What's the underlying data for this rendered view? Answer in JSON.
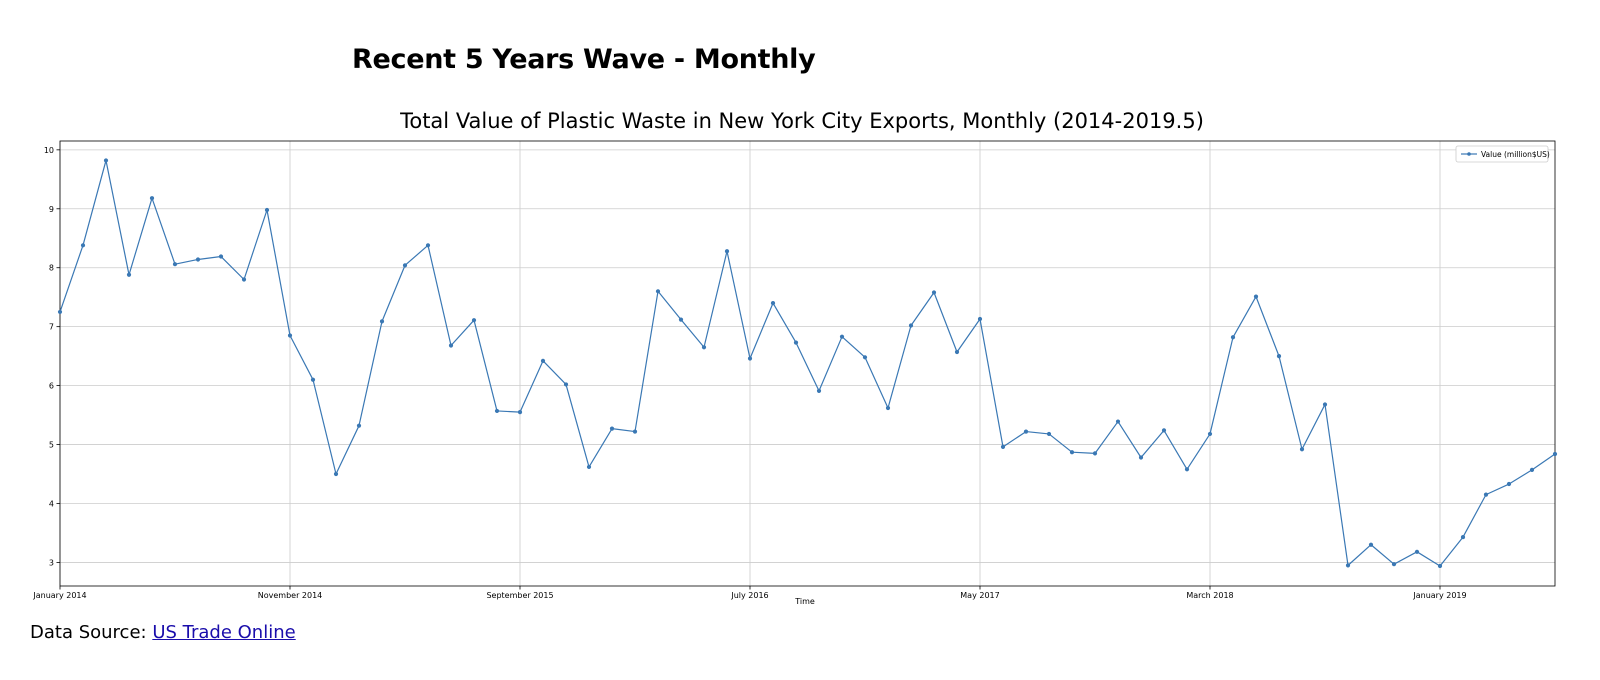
{
  "page": {
    "heading": "Recent 5 Years Wave - Monthly",
    "source_prefix": "Data Source: ",
    "source_link_text": "US Trade Online"
  },
  "colors": {
    "series": "#3a78b4",
    "grid": "#cccccc",
    "link": "#1a0dab"
  },
  "chart_data": {
    "type": "line",
    "title": "Total Value of Plastic Waste in New York City Exports, Monthly (2014-2019.5)",
    "xlabel": "Time",
    "ylabel": "",
    "grid": true,
    "legend_position": "top-right",
    "ylim": [
      2.6,
      10.15
    ],
    "yticks": [
      3,
      4,
      5,
      6,
      7,
      8,
      9,
      10
    ],
    "x_start": "2014-01",
    "x_end": "2019-06",
    "xticks": [
      {
        "x": "2014-01",
        "label": "January 2014"
      },
      {
        "x": "2014-11",
        "label": "November 2014"
      },
      {
        "x": "2015-09",
        "label": "September 2015"
      },
      {
        "x": "2016-07",
        "label": "July 2016"
      },
      {
        "x": "2017-05",
        "label": "May 2017"
      },
      {
        "x": "2018-03",
        "label": "March 2018"
      },
      {
        "x": "2019-01",
        "label": "January 2019"
      }
    ],
    "series": [
      {
        "name": "Value (million$US)",
        "color": "#3a78b4",
        "x": [
          "2014-01",
          "2014-02",
          "2014-03",
          "2014-04",
          "2014-05",
          "2014-06",
          "2014-07",
          "2014-08",
          "2014-09",
          "2014-10",
          "2014-11",
          "2014-12",
          "2015-01",
          "2015-02",
          "2015-03",
          "2015-04",
          "2015-05",
          "2015-06",
          "2015-07",
          "2015-08",
          "2015-09",
          "2015-10",
          "2015-11",
          "2015-12",
          "2016-01",
          "2016-02",
          "2016-03",
          "2016-04",
          "2016-05",
          "2016-06",
          "2016-07",
          "2016-08",
          "2016-09",
          "2016-10",
          "2016-11",
          "2016-12",
          "2017-01",
          "2017-02",
          "2017-03",
          "2017-04",
          "2017-05",
          "2017-06",
          "2017-07",
          "2017-08",
          "2017-09",
          "2017-10",
          "2017-11",
          "2017-12",
          "2018-01",
          "2018-02",
          "2018-03",
          "2018-04",
          "2018-05",
          "2018-06",
          "2018-07",
          "2018-08",
          "2018-09",
          "2018-10",
          "2018-11",
          "2018-12",
          "2019-01",
          "2019-02",
          "2019-03",
          "2019-04",
          "2019-05",
          "2019-06"
        ],
        "values": [
          7.25,
          8.38,
          9.82,
          7.88,
          9.18,
          8.06,
          8.14,
          8.19,
          7.8,
          8.98,
          6.85,
          6.1,
          4.5,
          5.32,
          7.09,
          8.04,
          8.38,
          6.68,
          7.11,
          5.57,
          5.55,
          6.42,
          6.02,
          4.62,
          5.27,
          5.22,
          7.6,
          7.12,
          6.65,
          8.28,
          6.46,
          7.4,
          6.73,
          5.91,
          6.83,
          6.48,
          5.62,
          7.02,
          7.58,
          6.57,
          7.13,
          4.96,
          5.22,
          5.18,
          4.87,
          4.85,
          5.39,
          4.78,
          5.24,
          4.58,
          5.18,
          6.82,
          7.51,
          6.5,
          4.92,
          5.68,
          2.95,
          3.3,
          2.97,
          3.18,
          2.94,
          3.43,
          4.15,
          4.33,
          4.57,
          4.84
        ]
      }
    ]
  }
}
